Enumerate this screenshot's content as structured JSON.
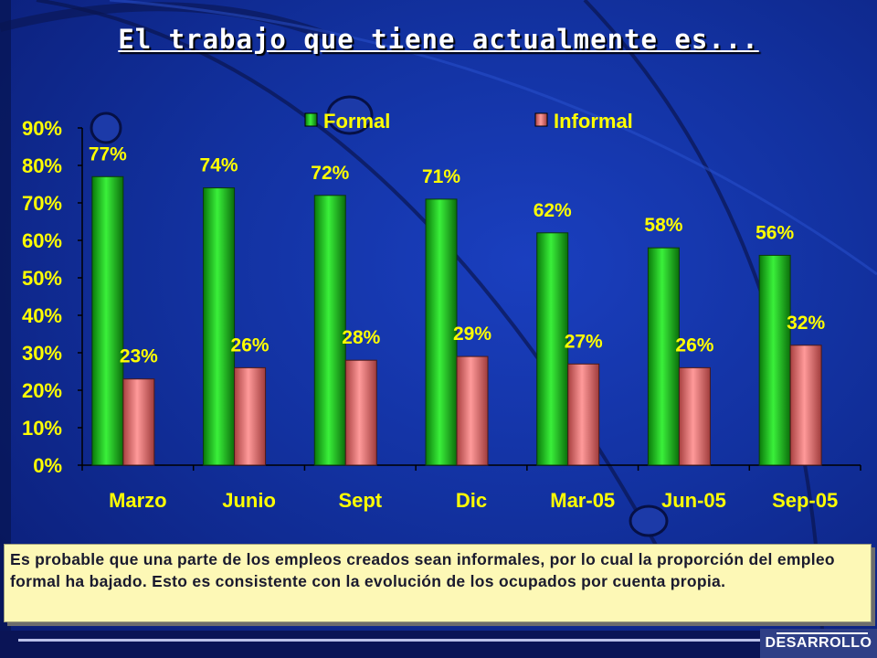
{
  "title": "El trabajo que tiene actualmente es...",
  "chart_data": {
    "type": "bar",
    "categories": [
      "Marzo",
      "Junio",
      "Sept",
      "Dic",
      "Mar-05",
      "Jun-05",
      "Sep-05"
    ],
    "series": [
      {
        "name": "Formal",
        "values": [
          77,
          74,
          72,
          71,
          62,
          58,
          56
        ],
        "color": "#1fcf1f"
      },
      {
        "name": "Informal",
        "values": [
          23,
          26,
          28,
          29,
          27,
          26,
          32
        ],
        "color": "#f07a7a"
      }
    ],
    "ylim": [
      0,
      90
    ],
    "yticks": [
      "0%",
      "10%",
      "20%",
      "30%",
      "40%",
      "50%",
      "60%",
      "70%",
      "80%",
      "90%"
    ],
    "value_suffix": "%",
    "xlabel": "",
    "ylabel": "",
    "legend_position": "top",
    "grid": false,
    "label_color": "#ffff00"
  },
  "note": "Es probable que una parte de los empleos creados sean informales, por lo cual la proporción del empleo formal ha bajado. Esto es consistente con la evolución de los ocupados por cuenta propia.",
  "footer": {
    "label": "DESARROLLO"
  }
}
